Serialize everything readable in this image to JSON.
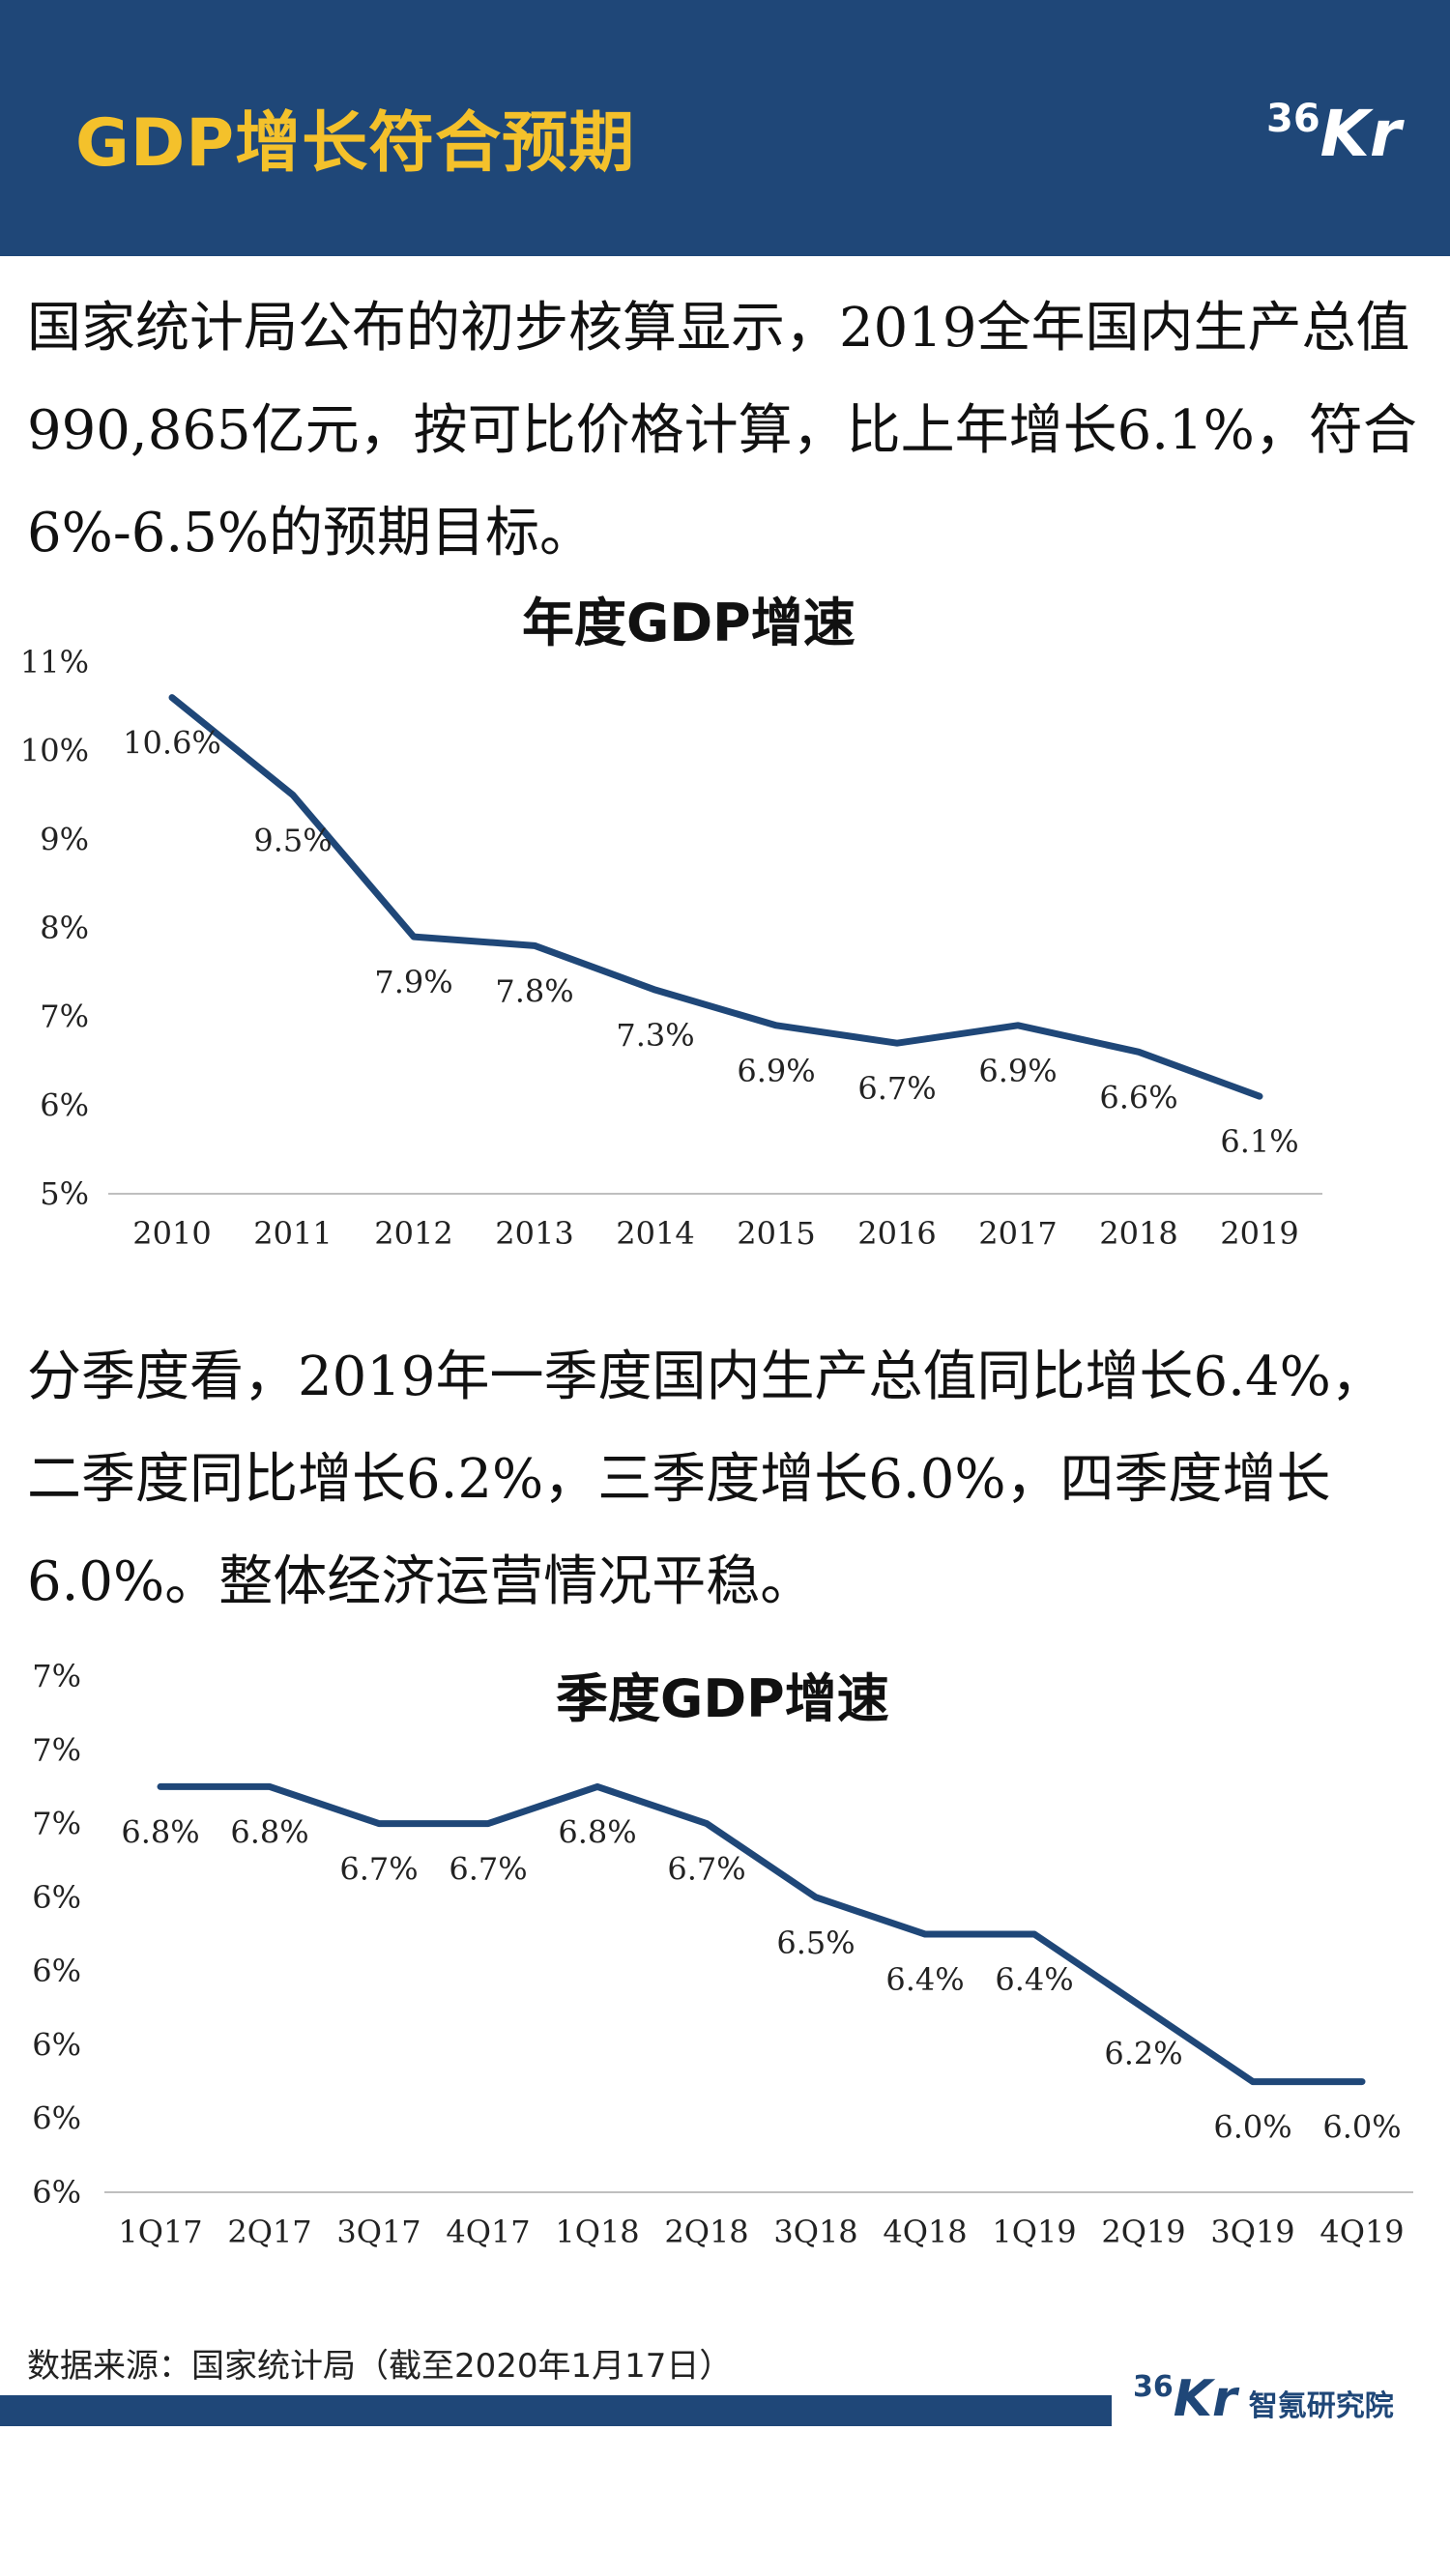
{
  "header": {
    "title": "GDP增长符合预期",
    "logo_num": "36",
    "logo_letters": "Kr"
  },
  "para1": "国家统计局公布的初步核算显示，2019全年国内生产总值990,865亿元，按可比价格计算，比上年增长6.1%，符合6%-6.5%的预期目标。",
  "para2": "分季度看，2019年一季度国内生产总值同比增长6.4%，二季度同比增长6.2%，三季度增长6.0%，四季度增长6.0%。整体经济运营情况平稳。",
  "chart_data": [
    {
      "type": "line",
      "title": "年度GDP增速",
      "x": [
        "2010",
        "2011",
        "2012",
        "2013",
        "2014",
        "2015",
        "2016",
        "2017",
        "2018",
        "2019"
      ],
      "values": [
        10.6,
        9.5,
        7.9,
        7.8,
        7.3,
        6.9,
        6.7,
        6.9,
        6.6,
        6.1
      ],
      "data_labels": [
        "10.6%",
        "9.5%",
        "7.9%",
        "7.8%",
        "7.3%",
        "6.9%",
        "6.7%",
        "6.9%",
        "6.6%",
        "6.1%"
      ],
      "yticks": [
        "5%",
        "6%",
        "7%",
        "8%",
        "9%",
        "10%",
        "11%"
      ],
      "ylim": [
        5,
        11
      ],
      "color": "#1f4778",
      "grid": false,
      "xlabel": "",
      "ylabel": ""
    },
    {
      "type": "line",
      "title": "季度GDP增速",
      "x": [
        "1Q17",
        "2Q17",
        "3Q17",
        "4Q17",
        "1Q18",
        "2Q18",
        "3Q18",
        "4Q18",
        "1Q19",
        "2Q19",
        "3Q19",
        "4Q19"
      ],
      "values": [
        6.8,
        6.8,
        6.7,
        6.7,
        6.8,
        6.7,
        6.5,
        6.4,
        6.4,
        6.2,
        6.0,
        6.0
      ],
      "data_labels": [
        "6.8%",
        "6.8%",
        "6.7%",
        "6.7%",
        "6.8%",
        "6.7%",
        "6.5%",
        "6.4%",
        "6.4%",
        "6.2%",
        "6.0%",
        "6.0%"
      ],
      "yticks": [
        "6%",
        "6%",
        "6%",
        "6%",
        "6%",
        "7%",
        "7%",
        "7%"
      ],
      "ylim": [
        5.7,
        7.1
      ],
      "color": "#1f4778",
      "grid": false,
      "xlabel": "",
      "ylabel": ""
    }
  ],
  "footer": {
    "source": "数据来源：国家统计局（截至2020年1月17日）",
    "logo_num": "36",
    "logo_letters": "Kr",
    "logo_text": "智氪研究院"
  }
}
